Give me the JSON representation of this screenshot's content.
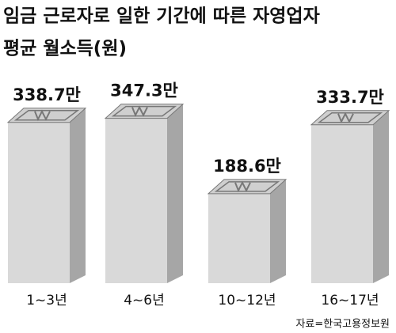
{
  "chart_data": {
    "type": "bar3d",
    "title": [
      "임금 근로자로 일한 기간에 따른 자영업자",
      "평균 월소득(원)"
    ],
    "categories": [
      "1~3년",
      "4~6년",
      "10~12년",
      "16~17년"
    ],
    "values": [
      338.7,
      347.3,
      188.6,
      333.7
    ],
    "value_labels": [
      "338.7만",
      "347.3만",
      "188.6만",
      "333.7만"
    ],
    "source": "자료=한국고용정보원",
    "color": "#d9d9d9"
  }
}
